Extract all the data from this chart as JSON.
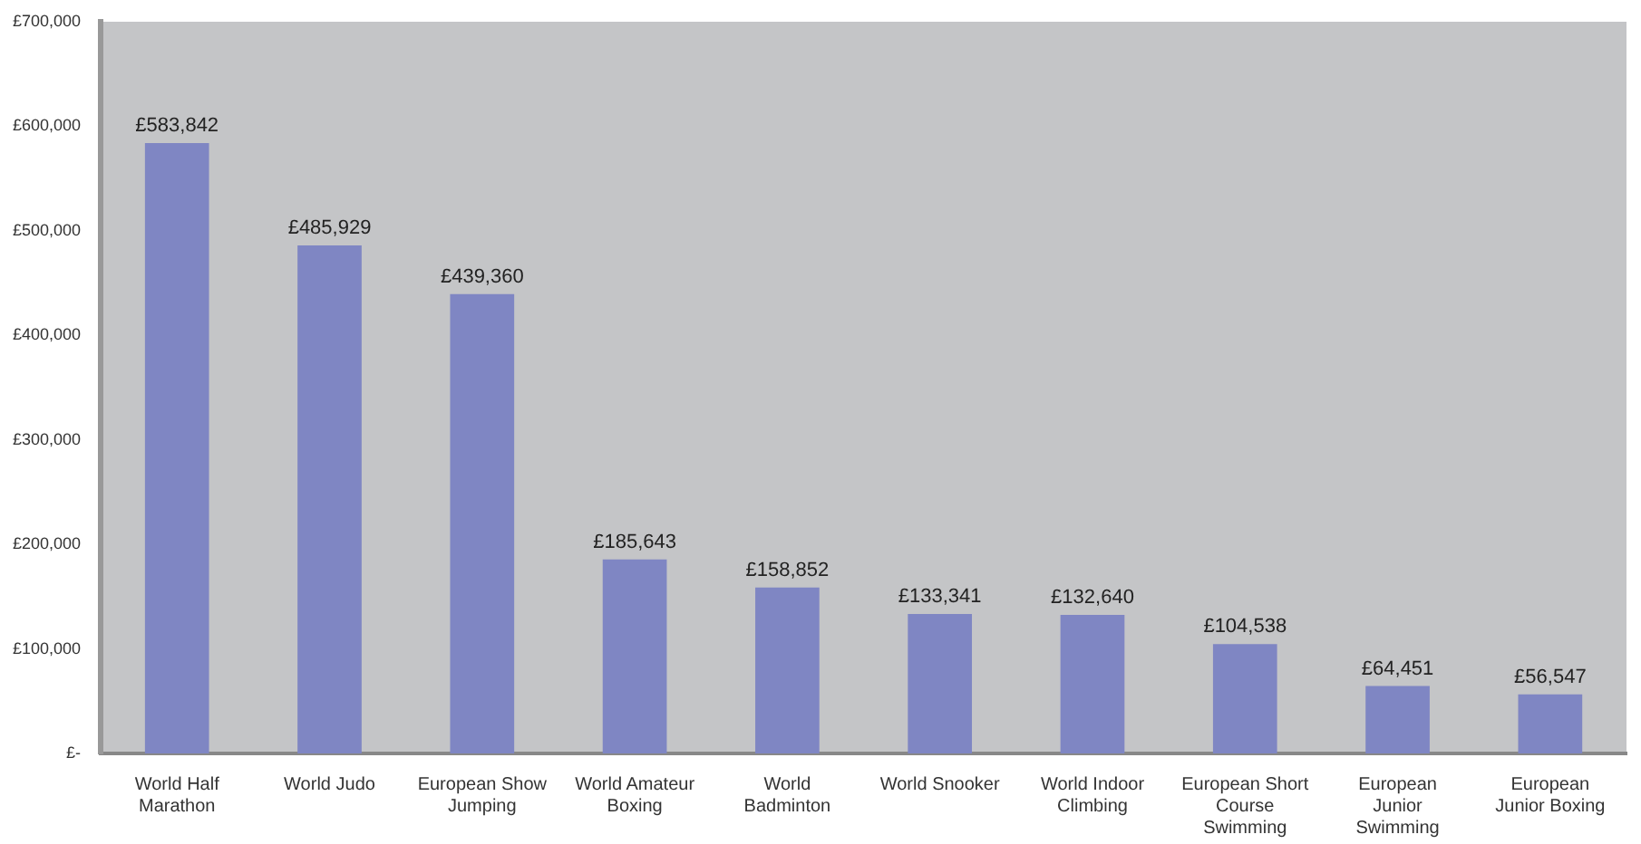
{
  "chart_data": {
    "type": "bar",
    "categories": [
      "World Half Marathon",
      "World Judo",
      "European Show Jumping",
      "World Amateur Boxing",
      "World Badminton",
      "World Snooker",
      "World Indoor Climbing",
      "European Short Course Swimming",
      "European Junior Swimming",
      "European Junior Boxing"
    ],
    "values": [
      583842,
      485929,
      439360,
      185643,
      158852,
      133341,
      132640,
      104538,
      64451,
      56547
    ],
    "value_labels": [
      "£583,842",
      "£485,929",
      "£439,360",
      "£185,643",
      "£158,852",
      "£133,341",
      "£132,640",
      "£104,538",
      "£64,451",
      "£56,547"
    ],
    "color": "#7f86c3",
    "ylim": [
      0,
      700000
    ],
    "yticks": [
      {
        "value": 0,
        "label": "£-"
      },
      {
        "value": 100000,
        "label": "£100,000"
      },
      {
        "value": 200000,
        "label": "£200,000"
      },
      {
        "value": 300000,
        "label": "£300,000"
      },
      {
        "value": 400000,
        "label": "£400,000"
      },
      {
        "value": 500000,
        "label": "£500,000"
      },
      {
        "value": 600000,
        "label": "£600,000"
      },
      {
        "value": 700000,
        "label": "£700,000"
      }
    ],
    "grid": false,
    "legend": false
  }
}
